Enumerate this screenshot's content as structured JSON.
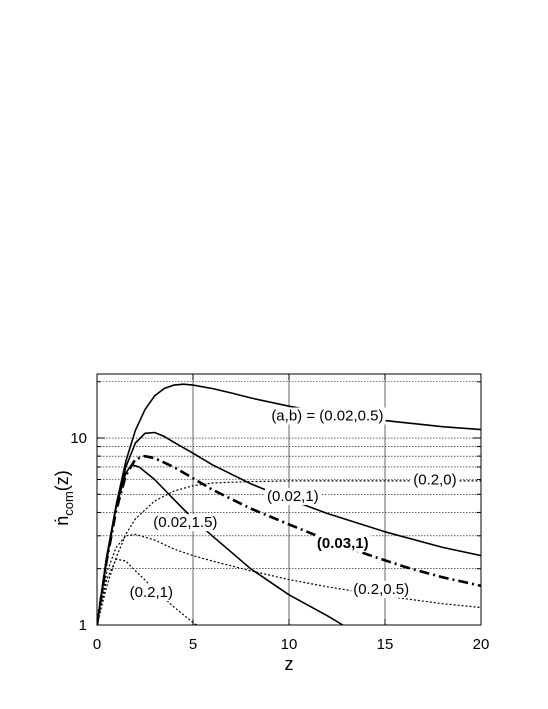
{
  "chart_data": {
    "type": "line",
    "xlabel": "z",
    "ylabel_main": "ṅ",
    "ylabel_sub": "com",
    "ylabel_tail": "(z)",
    "xlim": [
      0,
      20
    ],
    "ylim": [
      1,
      22
    ],
    "y_scale": "log",
    "grid": true,
    "x_ticks": [
      0,
      5,
      10,
      15,
      20
    ],
    "y_ticks": [
      1,
      10
    ],
    "x_tick_labels": [
      "0",
      "5",
      "10",
      "15",
      "20"
    ],
    "y_tick_labels": [
      "1",
      "10"
    ],
    "series": [
      {
        "label": "(a,b) = (0.02,0.5)",
        "style": "solid",
        "weight": "normal",
        "points": [
          [
            0,
            1
          ],
          [
            0.5,
            2.3
          ],
          [
            1,
            4.4
          ],
          [
            1.5,
            7.5
          ],
          [
            2,
            11.0
          ],
          [
            2.5,
            14.2
          ],
          [
            3,
            16.8
          ],
          [
            3.5,
            18.4
          ],
          [
            4,
            19.2
          ],
          [
            4.5,
            19.4
          ],
          [
            5,
            19.2
          ],
          [
            6,
            18.4
          ],
          [
            7,
            17.4
          ],
          [
            8,
            16.4
          ],
          [
            10,
            14.8
          ],
          [
            12,
            13.6
          ],
          [
            15,
            12.4
          ],
          [
            18,
            11.5
          ],
          [
            20,
            11.1
          ]
        ],
        "label_pos": [
          12.0,
          13.2
        ],
        "label_anchor": "middle"
      },
      {
        "label": "(0.02,1)",
        "style": "solid",
        "weight": "normal",
        "points": [
          [
            0,
            1
          ],
          [
            0.5,
            2.2
          ],
          [
            1,
            4.3
          ],
          [
            1.5,
            7.0
          ],
          [
            2,
            9.4
          ],
          [
            2.5,
            10.6
          ],
          [
            3,
            10.7
          ],
          [
            3.5,
            10.2
          ],
          [
            4,
            9.5
          ],
          [
            5,
            8.3
          ],
          [
            6,
            7.2
          ],
          [
            8,
            5.7
          ],
          [
            10,
            4.7
          ],
          [
            12,
            3.95
          ],
          [
            15,
            3.15
          ],
          [
            18,
            2.6
          ],
          [
            20,
            2.35
          ]
        ],
        "label_pos": [
          10.2,
          4.9
        ],
        "label_anchor": "middle"
      },
      {
        "label": "(0.02,1.5)",
        "style": "solid",
        "weight": "normal",
        "points": [
          [
            0,
            1
          ],
          [
            0.5,
            2.3
          ],
          [
            1,
            4.3
          ],
          [
            1.5,
            6.5
          ],
          [
            1.8,
            7.2
          ],
          [
            2.2,
            7.0
          ],
          [
            3,
            6.0
          ],
          [
            4,
            4.7
          ],
          [
            5,
            3.7
          ],
          [
            6,
            3.0
          ],
          [
            8,
            2.0
          ],
          [
            10,
            1.45
          ],
          [
            12,
            1.12
          ],
          [
            12.8,
            1.0
          ]
        ],
        "label_pos": [
          4.6,
          3.55
        ],
        "label_anchor": "middle"
      },
      {
        "label": "(0.03,1)",
        "style": "dashdot",
        "weight": "bold",
        "points": [
          [
            0,
            1
          ],
          [
            0.5,
            2.2
          ],
          [
            1,
            4.1
          ],
          [
            1.5,
            6.3
          ],
          [
            2,
            7.7
          ],
          [
            2.5,
            8.0
          ],
          [
            3,
            7.8
          ],
          [
            4,
            7.0
          ],
          [
            5,
            6.1
          ],
          [
            6,
            5.3
          ],
          [
            8,
            4.2
          ],
          [
            10,
            3.45
          ],
          [
            12,
            2.85
          ],
          [
            14,
            2.4
          ],
          [
            16,
            2.05
          ],
          [
            18,
            1.8
          ],
          [
            20,
            1.62
          ]
        ],
        "label_pos": [
          12.8,
          2.75
        ],
        "label_anchor": "middle"
      },
      {
        "label": "(0.2,0)",
        "style": "dotted",
        "weight": "normal",
        "points": [
          [
            0,
            1
          ],
          [
            0.5,
            1.6
          ],
          [
            1,
            2.3
          ],
          [
            1.5,
            3.05
          ],
          [
            2,
            3.7
          ],
          [
            3,
            4.6
          ],
          [
            4,
            5.2
          ],
          [
            5,
            5.55
          ],
          [
            6,
            5.75
          ],
          [
            8,
            5.85
          ],
          [
            10,
            5.9
          ],
          [
            15,
            5.9
          ],
          [
            20,
            5.9
          ]
        ],
        "label_pos": [
          17.6,
          6.0
        ],
        "label_anchor": "middle"
      },
      {
        "label": "(0.2,0.5)",
        "style": "dotted",
        "weight": "normal",
        "points": [
          [
            0,
            1
          ],
          [
            0.5,
            1.9
          ],
          [
            1,
            2.6
          ],
          [
            1.5,
            3.0
          ],
          [
            2,
            3.05
          ],
          [
            3,
            2.85
          ],
          [
            4,
            2.55
          ],
          [
            5,
            2.35
          ],
          [
            6,
            2.2
          ],
          [
            8,
            1.95
          ],
          [
            10,
            1.75
          ],
          [
            12,
            1.6
          ],
          [
            15,
            1.43
          ],
          [
            18,
            1.3
          ],
          [
            20,
            1.24
          ]
        ],
        "label_pos": [
          14.8,
          1.56
        ],
        "label_anchor": "middle"
      },
      {
        "label": "(0.2,1)",
        "style": "dotted",
        "weight": "normal",
        "points": [
          [
            0,
            1
          ],
          [
            0.5,
            1.75
          ],
          [
            1,
            2.25
          ],
          [
            1.5,
            2.2
          ],
          [
            2,
            1.95
          ],
          [
            3,
            1.55
          ],
          [
            4,
            1.25
          ],
          [
            5,
            1.03
          ],
          [
            5.2,
            1.0
          ]
        ],
        "label_pos": [
          1.7,
          1.5
        ],
        "label_anchor": "start"
      }
    ]
  }
}
